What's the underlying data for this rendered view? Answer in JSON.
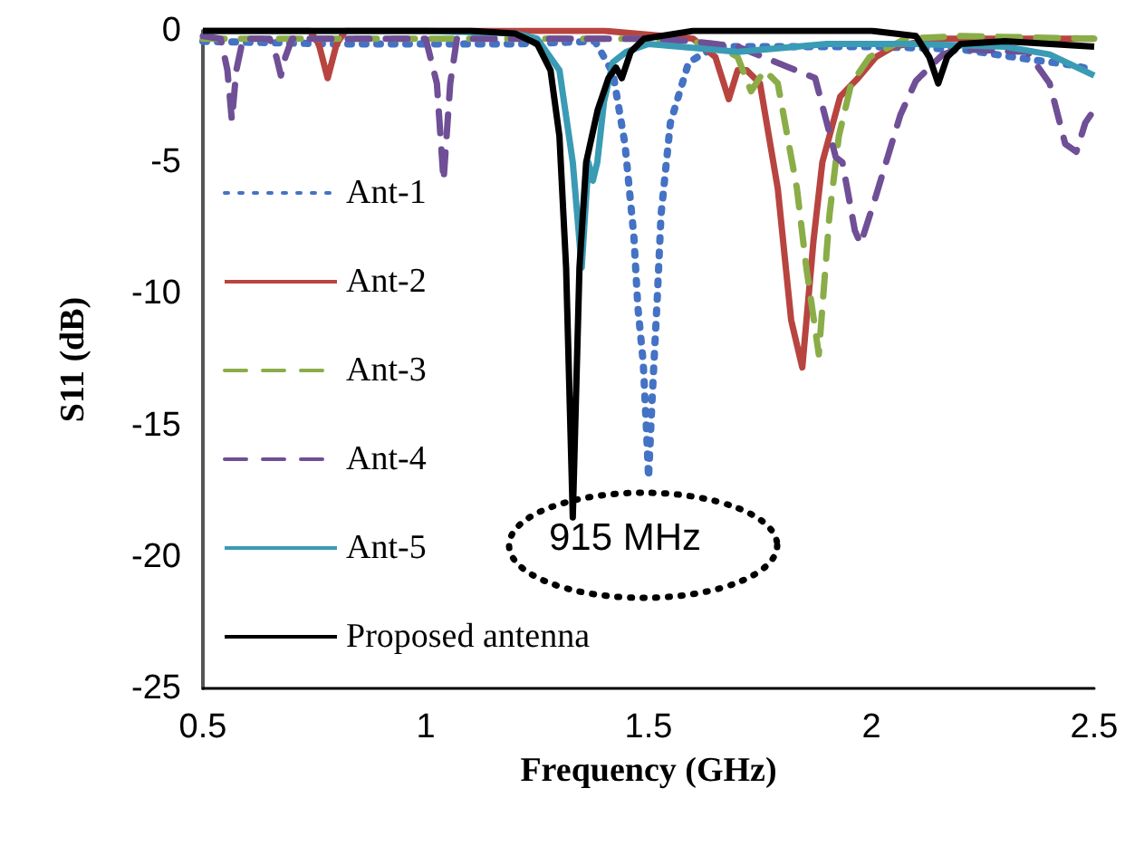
{
  "chart_data": {
    "type": "line",
    "xlabel": "Frequency (GHz)",
    "ylabel": "S11 (dB)",
    "xlim": [
      0.5,
      2.5
    ],
    "xticks": [
      0.5,
      1,
      1.5,
      2,
      2.5
    ],
    "ylim": [
      -25,
      0
    ],
    "yticks": [
      -25,
      -20,
      -15,
      -10,
      -5,
      0
    ],
    "grid": false,
    "legend": "left",
    "marker": "none",
    "annotations": [
      "915 MHz"
    ],
    "series": [
      {
        "name": "Ant-1",
        "color": "#4472c4",
        "line_style": "dotted",
        "x": [
          0.5,
          0.8,
          1.0,
          1.2,
          1.38,
          1.42,
          1.447,
          1.467,
          1.476,
          1.488,
          1.496,
          1.5,
          1.508,
          1.52,
          1.528,
          1.549,
          1.59,
          1.65,
          1.8,
          2.0,
          2.2,
          2.36,
          2.45,
          2.5
        ],
        "values": [
          -0.4,
          -0.5,
          -0.5,
          -0.5,
          -0.4,
          -1.6,
          -4.3,
          -7.8,
          -10.5,
          -12.6,
          -15.4,
          -17,
          -14,
          -10,
          -7,
          -3.5,
          -1.2,
          -0.6,
          -0.6,
          -0.6,
          -0.7,
          -1.1,
          -1.3,
          -1.5
        ]
      },
      {
        "name": "Ant-2",
        "color": "#b84440",
        "line_style": "solid",
        "x": [
          0.5,
          0.74,
          0.76,
          0.78,
          0.8,
          0.82,
          1.0,
          1.4,
          1.6,
          1.65,
          1.68,
          1.7,
          1.72,
          1.75,
          1.79,
          1.82,
          1.845,
          1.87,
          1.89,
          1.93,
          1.97,
          2.01,
          2.05,
          2.15,
          2.5
        ],
        "values": [
          0,
          0,
          -0.5,
          -1.8,
          -0.5,
          0,
          0,
          0,
          -0.3,
          -1,
          -2.6,
          -1.5,
          -1.5,
          -2,
          -6,
          -11,
          -12.8,
          -8,
          -5,
          -2.5,
          -1.8,
          -1,
          -0.6,
          -0.3,
          -0.3
        ]
      },
      {
        "name": "Ant-3",
        "color": "#8aad48",
        "line_style": "dashed",
        "x": [
          0.5,
          1.0,
          1.5,
          1.65,
          1.7,
          1.73,
          1.76,
          1.79,
          1.833,
          1.854,
          1.882,
          1.906,
          1.927,
          1.955,
          1.996,
          2.077,
          2.2,
          2.5
        ],
        "values": [
          -0.3,
          -0.3,
          -0.3,
          -0.5,
          -1,
          -2.3,
          -1.5,
          -2,
          -6,
          -9,
          -12.3,
          -7,
          -4,
          -2,
          -1,
          -0.3,
          -0.2,
          -0.3
        ]
      },
      {
        "name": "Ant-4",
        "color": "#6f4f96",
        "line_style": "dashed",
        "x": [
          0.5,
          0.54,
          0.555,
          0.565,
          0.575,
          0.59,
          0.65,
          0.665,
          0.675,
          0.685,
          0.7,
          1.0,
          1.025,
          1.04,
          1.055,
          1.07,
          1.5,
          1.6,
          1.7,
          1.874,
          1.92,
          1.935,
          1.963,
          1.976,
          2.008,
          2.065,
          2.1,
          2.16,
          2.2,
          2.35,
          2.4,
          2.435,
          2.46,
          2.48,
          2.5
        ],
        "values": [
          -0.2,
          -0.3,
          -1.5,
          -3.4,
          -1.5,
          -0.3,
          -0.3,
          -1,
          -1.7,
          -1,
          -0.3,
          -0.3,
          -2,
          -5.7,
          -2,
          -0.3,
          -0.3,
          -0.4,
          -0.6,
          -1.8,
          -4.8,
          -5,
          -7.6,
          -8.1,
          -6.4,
          -3.2,
          -1.9,
          -0.9,
          -0.7,
          -0.8,
          -2,
          -4.3,
          -4.6,
          -3.5,
          -3
        ]
      },
      {
        "name": "Ant-5",
        "color": "#3a9bb5",
        "line_style": "solid",
        "x": [
          0.5,
          1.0,
          1.2,
          1.25,
          1.3,
          1.33,
          1.35,
          1.365,
          1.375,
          1.385,
          1.4,
          1.42,
          1.45,
          1.5,
          1.7,
          1.9,
          2.1,
          2.3,
          2.4,
          2.5
        ],
        "values": [
          0,
          0,
          -0.1,
          -0.3,
          -1.5,
          -5,
          -9,
          -5,
          -5.7,
          -5,
          -2.7,
          -1.2,
          -0.8,
          -0.5,
          -0.8,
          -0.5,
          -0.5,
          -0.6,
          -0.9,
          -1.7
        ]
      },
      {
        "name": "Proposed antenna",
        "color": "#000000",
        "line_style": "solid",
        "x": [
          0.5,
          1.1,
          1.2,
          1.25,
          1.28,
          1.3,
          1.315,
          1.33,
          1.345,
          1.36,
          1.386,
          1.41,
          1.427,
          1.44,
          1.46,
          1.49,
          1.6,
          1.8,
          2.0,
          2.1,
          2.13,
          2.15,
          2.17,
          2.2,
          2.3,
          2.4,
          2.5
        ],
        "values": [
          0,
          0,
          -0.1,
          -0.5,
          -1.5,
          -4,
          -9,
          -18.5,
          -9,
          -5,
          -3,
          -1.8,
          -1.4,
          -1.8,
          -0.8,
          -0.3,
          0,
          0,
          0,
          -0.2,
          -1,
          -2,
          -1,
          -0.5,
          -0.4,
          -0.5,
          -0.6
        ]
      }
    ]
  }
}
